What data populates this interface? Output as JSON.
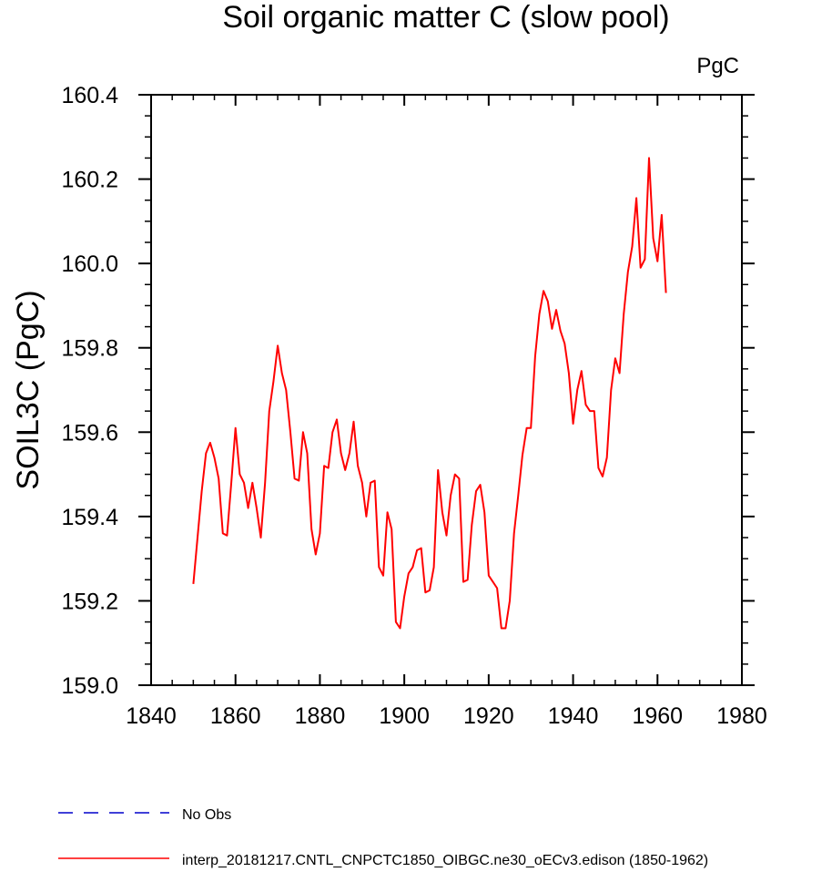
{
  "chart_data": {
    "type": "line",
    "title": "Soil organic matter C (slow pool)",
    "units": "PgC",
    "xlabel": "",
    "ylabel": "SOIL3C  (PgC)",
    "xlim": [
      1840,
      1980
    ],
    "ylim": [
      159.0,
      160.4
    ],
    "xticks": [
      "1840",
      "1860",
      "1880",
      "1900",
      "1920",
      "1940",
      "1960",
      "1980"
    ],
    "yticks": [
      "159.0",
      "159.2",
      "159.4",
      "159.6",
      "159.8",
      "160.0",
      "160.2",
      "160.4"
    ],
    "grid": false,
    "legend": "bottom-left",
    "legend_entries": [
      {
        "label": "No Obs",
        "color": "#0000cc",
        "dash": "dashed"
      },
      {
        "label": "interp_20181217.CNTL_CNPCTC1850_OIBGC.ne30_oECv3.edison (1850-1962)",
        "color": "#ff0000",
        "dash": "solid"
      }
    ],
    "series": [
      {
        "color": "#ff0000",
        "x": [
          1850,
          1851,
          1852,
          1853,
          1854,
          1855,
          1856,
          1857,
          1858,
          1859,
          1860,
          1861,
          1862,
          1863,
          1864,
          1865,
          1866,
          1867,
          1868,
          1869,
          1870,
          1871,
          1872,
          1873,
          1874,
          1875,
          1876,
          1877,
          1878,
          1879,
          1880,
          1881,
          1882,
          1883,
          1884,
          1885,
          1886,
          1887,
          1888,
          1889,
          1890,
          1891,
          1892,
          1893,
          1894,
          1895,
          1896,
          1897,
          1898,
          1899,
          1900,
          1901,
          1902,
          1903,
          1904,
          1905,
          1906,
          1907,
          1908,
          1909,
          1910,
          1911,
          1912,
          1913,
          1914,
          1915,
          1916,
          1917,
          1918,
          1919,
          1920,
          1921,
          1922,
          1923,
          1924,
          1925,
          1926,
          1927,
          1928,
          1929,
          1930,
          1931,
          1932,
          1933,
          1934,
          1935,
          1936,
          1937,
          1938,
          1939,
          1940,
          1941,
          1942,
          1943,
          1944,
          1945,
          1946,
          1947,
          1948,
          1949,
          1950,
          1951,
          1952,
          1953,
          1954,
          1955,
          1956,
          1957,
          1958,
          1959,
          1960,
          1961,
          1962
        ],
        "values": [
          159.24,
          159.35,
          159.46,
          159.55,
          159.575,
          159.54,
          159.49,
          159.36,
          159.355,
          159.48,
          159.61,
          159.5,
          159.48,
          159.42,
          159.48,
          159.42,
          159.35,
          159.48,
          159.65,
          159.72,
          159.805,
          159.74,
          159.7,
          159.6,
          159.49,
          159.485,
          159.6,
          159.55,
          159.37,
          159.31,
          159.36,
          159.52,
          159.515,
          159.6,
          159.63,
          159.55,
          159.51,
          159.55,
          159.625,
          159.52,
          159.48,
          159.4,
          159.48,
          159.485,
          159.28,
          159.26,
          159.41,
          159.37,
          159.15,
          159.135,
          159.21,
          159.265,
          159.28,
          159.32,
          159.325,
          159.22,
          159.225,
          159.28,
          159.51,
          159.41,
          159.355,
          159.45,
          159.5,
          159.49,
          159.245,
          159.25,
          159.38,
          159.46,
          159.475,
          159.41,
          159.26,
          159.245,
          159.23,
          159.135,
          159.135,
          159.2,
          159.36,
          159.45,
          159.545,
          159.61,
          159.61,
          159.78,
          159.88,
          159.935,
          159.91,
          159.845,
          159.89,
          159.84,
          159.81,
          159.74,
          159.62,
          159.7,
          159.745,
          159.665,
          159.65,
          159.65,
          159.515,
          159.495,
          159.54,
          159.7,
          159.775,
          159.74,
          159.88,
          159.98,
          160.04,
          160.155,
          159.99,
          160.01,
          160.25,
          160.06,
          160.005,
          160.115,
          159.93
        ]
      }
    ]
  }
}
